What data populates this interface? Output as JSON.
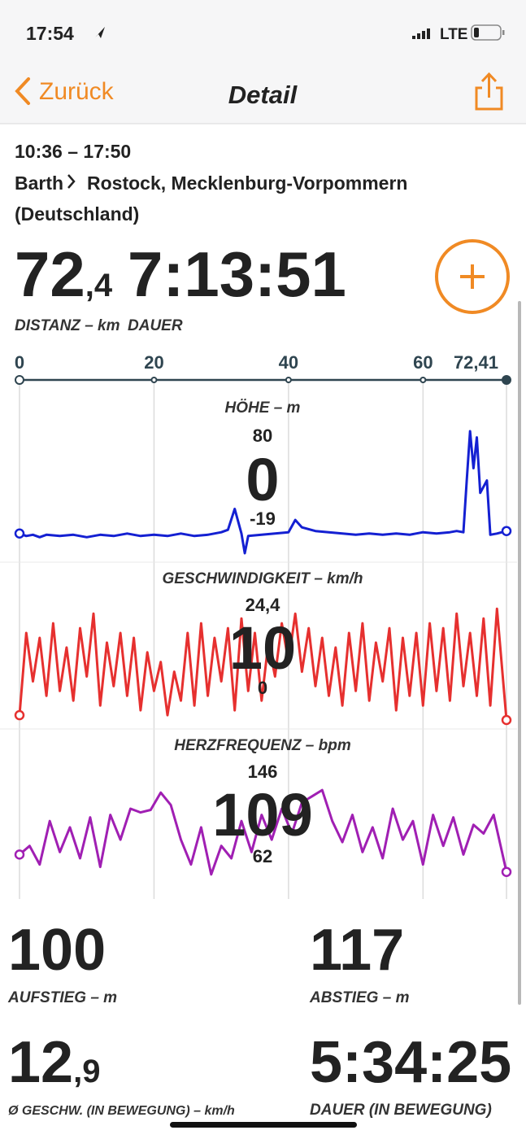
{
  "status_bar": {
    "time": "17:54",
    "network": "LTE"
  },
  "nav": {
    "back": "Zurück",
    "title": "Detail"
  },
  "trip": {
    "time_range": "10:36 – 17:50",
    "from": "Barth",
    "to_line1": "Rostock, Mecklenburg-Vorpommern",
    "to_line2": "(Deutschland)"
  },
  "stats": {
    "distance": {
      "int": "72",
      "dec": ",4",
      "label": "DISTANZ – km"
    },
    "duration": {
      "value": "7:13:51",
      "label": "DAUER"
    },
    "ascent": {
      "value": "100",
      "label": "AUFSTIEG – m"
    },
    "descent": {
      "value": "117",
      "label": "ABSTIEG – m"
    },
    "avg_speed": {
      "int": "12",
      "dec": ",9",
      "label": "Ø GESCHW. (IN BEWEGUNG) – km/h"
    },
    "moving_time": {
      "value": "5:34:25",
      "label": "DAUER (IN BEWEGUNG)"
    }
  },
  "distance_axis": {
    "xlim": [
      0,
      72.41
    ],
    "xticks": [
      0,
      20,
      40,
      60,
      {
        "value": 72.41,
        "label": "72,41"
      }
    ]
  },
  "chart_data": [
    {
      "type": "line",
      "title": "HÖHE – m",
      "color": "#1420d2",
      "current_value": 0,
      "ylim": [
        -19,
        80
      ],
      "yticks": [
        -19,
        80
      ],
      "xlim": [
        0,
        72.41
      ],
      "x": [
        0,
        1,
        2,
        3,
        4,
        6,
        8,
        10,
        12,
        14,
        16,
        18,
        20,
        22,
        24,
        26,
        28,
        30,
        31,
        32,
        33,
        33.5,
        34,
        36,
        38,
        40,
        41,
        42,
        44,
        46,
        48,
        50,
        52,
        54,
        56,
        58,
        60,
        62,
        64,
        65,
        66,
        66.5,
        67,
        67.5,
        68,
        68.5,
        69,
        69.5,
        70,
        71,
        72.41
      ],
      "values": [
        -3,
        -5,
        -4,
        -6,
        -4,
        -5,
        -4,
        -6,
        -4,
        -5,
        -3,
        -5,
        -4,
        -5,
        -3,
        -5,
        -4,
        -2,
        0,
        17,
        -3,
        -19,
        -5,
        -4,
        -3,
        -2,
        8,
        2,
        -1,
        -2,
        -3,
        -4,
        -3,
        -4,
        -3,
        -4,
        -2,
        -3,
        -2,
        -1,
        -2,
        40,
        80,
        50,
        75,
        30,
        35,
        40,
        -4,
        -3,
        -1
      ]
    },
    {
      "type": "line",
      "title": "GESCHWINDIGKEIT – km/h",
      "color": "#e6302f",
      "current_value": 10,
      "ylim": [
        0,
        24.4
      ],
      "yticks": [
        0,
        {
          "value": 24.4,
          "label": "24,4"
        }
      ],
      "xlim": [
        0,
        72.41
      ],
      "x": [
        0,
        1,
        2,
        3,
        4,
        5,
        6,
        7,
        8,
        9,
        10,
        11,
        12,
        13,
        14,
        15,
        16,
        17,
        18,
        19,
        20,
        21,
        22,
        23,
        24,
        25,
        26,
        27,
        28,
        29,
        30,
        31,
        32,
        33,
        34,
        35,
        36,
        37,
        38,
        39,
        40,
        41,
        42,
        43,
        44,
        45,
        46,
        47,
        48,
        49,
        50,
        51,
        52,
        53,
        54,
        55,
        56,
        57,
        58,
        59,
        60,
        61,
        62,
        63,
        64,
        65,
        66,
        67,
        68,
        69,
        70,
        71,
        72.41
      ],
      "values": [
        1,
        18,
        8,
        17,
        5,
        20,
        6,
        15,
        4,
        19,
        9,
        22,
        3,
        16,
        7,
        18,
        5,
        17,
        2,
        14,
        6,
        12,
        1,
        10,
        4,
        18,
        3,
        20,
        5,
        17,
        8,
        19,
        2,
        21,
        6,
        18,
        4,
        16,
        9,
        20,
        12,
        22,
        10,
        19,
        7,
        17,
        5,
        15,
        3,
        18,
        6,
        20,
        4,
        16,
        8,
        19,
        2,
        17,
        5,
        18,
        3,
        20,
        6,
        19,
        4,
        22,
        7,
        18,
        5,
        21,
        3,
        23,
        0
      ]
    },
    {
      "type": "line",
      "title": "HERZFREQUENZ – bpm",
      "color": "#a01fb3",
      "current_value": 109,
      "ylim": [
        62,
        146
      ],
      "yticks": [
        62,
        146
      ],
      "xlim": [
        0,
        72.41
      ],
      "x": [
        0,
        1.5,
        3,
        4.5,
        6,
        7.5,
        9,
        10.5,
        12,
        13.5,
        15,
        16.5,
        18,
        19.5,
        21,
        22.5,
        24,
        25.5,
        27,
        28.5,
        30,
        31.5,
        33,
        34.5,
        36,
        37.5,
        39,
        40.5,
        42,
        43.5,
        45,
        46.5,
        48,
        49.5,
        51,
        52.5,
        54,
        55.5,
        57,
        58.5,
        60,
        61.5,
        63,
        64.5,
        66,
        67.5,
        69,
        70.5,
        72.41
      ],
      "values": [
        88,
        95,
        80,
        115,
        90,
        110,
        85,
        118,
        78,
        120,
        100,
        125,
        122,
        124,
        138,
        128,
        100,
        80,
        110,
        72,
        95,
        85,
        115,
        90,
        120,
        100,
        125,
        105,
        130,
        135,
        140,
        115,
        98,
        120,
        90,
        110,
        85,
        125,
        100,
        115,
        80,
        120,
        95,
        118,
        88,
        112,
        105,
        120,
        74
      ]
    }
  ]
}
